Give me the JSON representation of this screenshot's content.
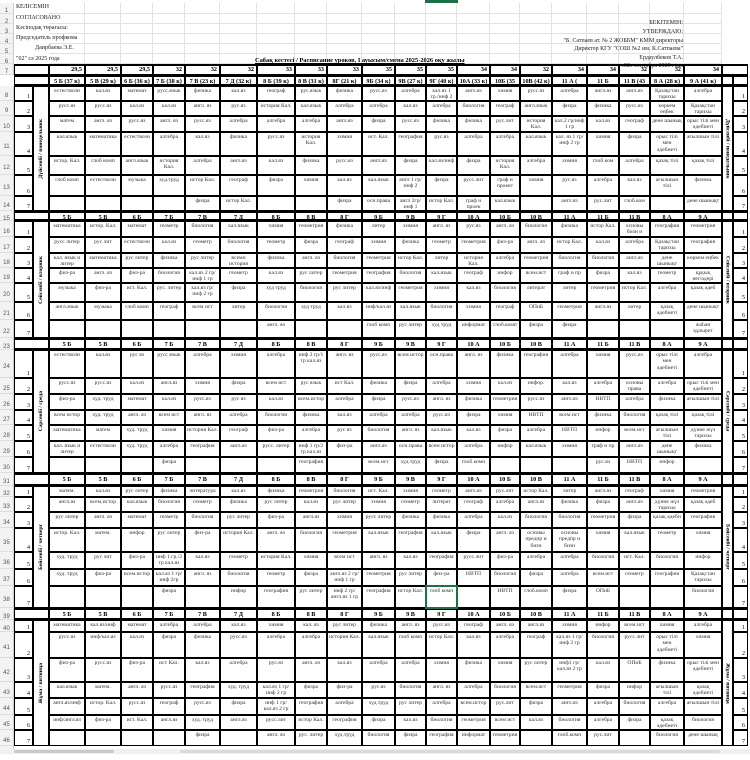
{
  "header_left": [
    "КЕЛІСЕМІН",
    "СОГЛАСОВАНО",
    "Кәсіподақ төрағасы:",
    "Председатель профкома",
    "Даирбаева Э.Е.",
    "\"02\" сә 2025 года"
  ],
  "header_right": [
    "БЕКІТЕМІН:",
    "УТВЕРЖДАЮ:",
    "\"Б. Сатпаев ат. № 2 ЖОББМ\" КММ директоры",
    "Директор КГУ \"СОШ №2 им. К.Сатпаева\"",
    "Ердаулбеков Т.А.",
    "«02» сентября 2025 года"
  ],
  "title": "Сабақ кестесі / Расписание уроков, I ауысым/смена 2025-2026 оқу жылы",
  "room_numbers": [
    "29,5",
    "29,5",
    "29,5",
    "32",
    "32",
    "32",
    "33",
    "33",
    "33",
    "35",
    "35",
    "35",
    "34",
    "34",
    "32",
    "34",
    "34",
    "32",
    "32",
    "34"
  ],
  "classes_full": [
    "5 Б (37 к)",
    "5 В (29 к)",
    "6 Б (36 к)",
    "7 Б (38 к)",
    "7 В (23 к)",
    "7 Д (32 к)",
    "8 Б (39 к)",
    "8 В (31 к)",
    "8Г (21 к)",
    "9Б (34 к)",
    "9В (27 к)",
    "9Г (40 к)",
    "10А (33 к)",
    "10Б (35 к)",
    "10В (42 к)",
    "11 А ( Сатп)",
    "11 Б (Абай)",
    "11 В (43 к)",
    "8 А (28 к)",
    "9 А (41 к)"
  ],
  "classes": [
    "5 Б",
    "5 В",
    "6 Б",
    "7 Б",
    "7 В",
    "7 Д",
    "8 Б",
    "8 В",
    "8 Г",
    "9 Б",
    "9 В",
    "9 Г",
    "10 А",
    "10 Б",
    "10 В",
    "11 А",
    "11 Б",
    "11 В",
    "8 А",
    "9 А"
  ],
  "lesson_numbers": [
    "1",
    "2",
    "3",
    "4",
    "5",
    "6",
    "7"
  ],
  "days": [
    {
      "label": "Дүйсенбі / понедельник",
      "lessons": [
        [
          "естествозн",
          "кал.яз",
          "математ",
          "русс.язык",
          "физика",
          "кал.яз",
          "географ",
          "рус.язык",
          "физика",
          "русс.яз",
          "алгебра",
          "кал.яз 1 гр./инф 2",
          "англ.яз",
          "химия",
          "русс.яз",
          "алгебра",
          "англ.яз",
          "англ.яз",
          "Қазақстан тарихы",
          "алгебра"
        ],
        [
          "русс.яз",
          "русс.яз",
          "кал.яз",
          "кал.яз",
          "англ. яз",
          "рус.яз",
          "история Кал.",
          "кал.язык",
          "алгебра",
          "алгебра",
          "кал.яз",
          "алгебра",
          "биология",
          "географ",
          "англ.язык",
          "физра",
          "физика",
          "русс.яз",
          "көркем еңбек",
          "Қазақстан тарихы"
        ],
        [
          "матем",
          "англ. яз",
          "русс.яз",
          "англ. яз",
          "русс.яз",
          "алгебра",
          "алгебра",
          "алгебра",
          "англ.яз",
          "физра",
          "русс.яз",
          "физика",
          "физика",
          "рус.лит",
          "история Кал.",
          "кал.2 гр/инф 1 гр",
          "кал.яз",
          "географ",
          "дене шынық",
          "орыс тілі мен әдебиеті"
        ],
        [
          "кал.язык",
          "математика",
          "естествозн",
          "алгебра",
          "кал.яз",
          "физика",
          "русс.яз",
          "история Кал.",
          "химия",
          "ист. Кал.",
          "география",
          "рус.яз",
          "алгебра",
          "алгебра",
          "кал.язык",
          "кал. яз 1 гр/инф 2 гр",
          "химия",
          "физра",
          "орыс тілі мен әдебиеті",
          "ағылшын тілі"
        ],
        [
          "истор. Кал.",
          "глоб комп",
          "англ.язык",
          "история Кал.",
          "алгебра",
          "англ.яз",
          "кал.яз",
          "физика",
          "русс.яз",
          "англ.яз",
          "физра",
          "кал.яз/инф",
          "физра",
          "история Кал.",
          "алгебра",
          "химия",
          "глоб.ком",
          "алгебра",
          "қазақ тілі",
          "қазақ тілі"
        ],
        [
          "глоб комп",
          "естествозн",
          "музыка",
          "худ.труд",
          "истор Кал.",
          "географ",
          "физра",
          "химия",
          "кал.яз",
          "кал.язык",
          "англ 1 гр/инф 2",
          "физра",
          "русс.лит",
          "граф и проект",
          "химия",
          "рус.яз",
          "алгебра",
          "кал.яз",
          "ағылшын тілі",
          "физика"
        ],
        [
          "",
          "",
          "",
          "",
          "физра",
          "истор Кал.",
          "",
          "",
          "физра",
          "осн.права",
          "англ 2гр/инф 1",
          "истор Кал.",
          "граф и проек",
          "кал.язык",
          "",
          "англ.яз",
          "рус.лит",
          "глоб.ком",
          "",
          "дене шынықт"
        ]
      ]
    },
    {
      "label": "Сейсенбі / вторник",
      "lessons": [
        [
          "математика",
          "истор. Кал.",
          "математ",
          "геометр",
          "биология",
          "кал.язык",
          "химия",
          "геометрия",
          "физика",
          "литер",
          "химия",
          "англ. яз",
          "рус.яз",
          "англ. яз",
          "биология",
          "физика",
          "истор Кал.",
          "основы бизн и",
          "география",
          "геометрия"
        ],
        [
          "русс литер",
          "рус лит",
          "естествозн",
          "кал.яз",
          "геометр",
          "биология",
          "геометр",
          "физра",
          "географ",
          "химия",
          "физика",
          "геометр",
          "геометрия",
          "физ-ра",
          "англ. яз",
          "истор Кал.",
          "кал.яз",
          "алгебра",
          "Қазақстан тарихы",
          "география"
        ],
        [
          "кал. язык и литер",
          "математика",
          "рус литер",
          "физика",
          "рус литер",
          "всеми история",
          "физика",
          "англ. яз",
          "биология",
          "геометрия",
          "истор Кал.",
          "литер",
          "история Кал.",
          "алгебра",
          "геометрия",
          "биология",
          "биология",
          "англ.яз",
          "дене шынықт",
          "көркем еңбек"
        ],
        [
          "физ-ра",
          "англ. яз",
          "физ-ра",
          "биология",
          "кал.яз 2 гр/инф 1 гр",
          "геометр",
          "кал.яз",
          "рус литер",
          "геометрия",
          "география",
          "биология",
          "кал.язык",
          "географ",
          "инфор",
          "всем.ист",
          "граф и пр",
          "физра",
          "кал.яз",
          "геометр",
          "құқық негіздері"
        ],
        [
          "музыка",
          "физ-ра",
          "ист. Кал.",
          "рус. литер",
          "кал.яз гр/инф 2 гр",
          "физра",
          "худ труд",
          "биология",
          "рус литер",
          "кал.яз/инф",
          "геометрия",
          "химия",
          "кал.яз",
          "биология",
          "литерат",
          "литер",
          "геометрия",
          "истор Кал.",
          "алгебра",
          "қазақ әдеб"
        ],
        [
          "англ.язык",
          "музыка",
          "глоб комп",
          "географ",
          "всем ист",
          "литер",
          "биология",
          "худ труд",
          "кал.яз",
          "инф/кал.яз",
          "кал.язык",
          "биология",
          "химия",
          "географ",
          "ОПиБ",
          "геометрия",
          "англ.яз",
          "литер",
          "қазақ әдебиеті",
          "дене шынықт"
        ],
        [
          "",
          "",
          "",
          "",
          "",
          "",
          "англ. яз",
          "",
          "",
          "глоб комп",
          "рус литер",
          "худ труд",
          "информат",
          "глоб.комп",
          "физра",
          "физра",
          "",
          "",
          "",
          "жаһан құзырет"
        ]
      ]
    },
    {
      "label": "Сәрсенбі / среда",
      "lessons": [
        [
          "естествозн",
          "кал.яз",
          "рус яз",
          "русс язык",
          "алгебра",
          "химия",
          "алгебра",
          "инф 2 гр/1 гр кал.яз",
          "англ. яз",
          "русс.яз",
          "всем.истор",
          "осн.права",
          "англ. яз",
          "физика",
          "география",
          "алгебра",
          "химия",
          "русс.яз",
          "орыс тілі мен әдебиеті",
          "алгебра"
        ],
        [
          "русс.яз",
          "русс.яз",
          "кал.яз",
          "англ.яз",
          "химия",
          "физра",
          "всем ист",
          "рус язык",
          "ист Кал.",
          "физика",
          "физра",
          "алгебра",
          "химия",
          "кал.яз",
          "инфор.",
          "кал.яз",
          "алгебра",
          "основы права",
          "алгебра",
          "орыс тілі мен әдебиеті"
        ],
        [
          "физ-ра",
          "худ. труд",
          "математ",
          "кал.яз",
          "русс.яз",
          "рус яз",
          "кал.яз",
          "всем.истор",
          "алгебра",
          "физра",
          "русс.яз",
          "англ. яз",
          "физика",
          "геометрия",
          "русс.яз",
          "англ.яз",
          "НВТП",
          "алгебра",
          "физика",
          "ағылшын тілі"
        ],
        [
          "всем истор",
          "худ. труд",
          "англ. яз",
          "всем ист",
          "англ. яз",
          "алгебра",
          "биология",
          "физика",
          "кал.яз",
          "алгебра",
          "алгебра",
          "русс.яз",
          "физра",
          "химия",
          "НВТП",
          "всем.ист",
          "физика",
          "биология",
          "қазақ тілі",
          "қазақ тілі"
        ],
        [
          "математика",
          "матем",
          "худ. труд",
          "химия",
          "история Кал.",
          "географ",
          "физ-ра",
          "алгебра",
          "рус яз",
          "биология",
          "англ. яз",
          "кал.язык",
          "кал.яз",
          "физра",
          "алгебра",
          "НВТП",
          "инфор",
          "всем.ист",
          "ағылшын тілі",
          "дүние жүз тарихы"
        ],
        [
          "кал. язык и литер",
          "естествозн",
          "худ. труд",
          "алгебра",
          "география",
          "англ.яз",
          "русс. литер",
          "инф 1 гр/2 гр кал.яз",
          "физ-ра",
          "англ.яз",
          "осн.права",
          "всем истор",
          "алгебра",
          "инфор",
          "кал.язык",
          "химия",
          "граф и пр",
          "англ.яз",
          "дене шынықт",
          "физика"
        ],
        [
          "",
          "",
          "",
          "физра",
          "",
          "",
          "",
          "география",
          "",
          "всем.ист",
          "худ.труд",
          "физра",
          "глоб.комп",
          "",
          "",
          "",
          "рус.яз",
          "НВТП",
          "инфор",
          ""
        ]
      ]
    },
    {
      "label": "Бейсенбі / четверг",
      "lessons": [
        [
          "матем.",
          "кал.яз",
          "рус литер",
          "физика",
          "литература",
          "кал.яз",
          "физика",
          "геометрия",
          "биология",
          "ист. Кал.",
          "химия",
          "геометр",
          "англ.яз",
          "рус.лит",
          "истор Кал.",
          "литер",
          "англ.яз",
          "географ",
          "химия",
          "геометрия"
        ],
        [
          "англ.яз",
          "всем.истор",
          "кал.язык",
          "биология",
          "геометр",
          "физика",
          "рус литер",
          "кал.яз",
          "рус литер",
          "химия",
          "геометр",
          "литерат",
          "географ",
          "алгебра",
          "англ.яз",
          "физика",
          "физра",
          "англ.яз",
          "дүние жүз тарихы",
          "қазақ әдеб"
        ],
        [
          "рус литер",
          "англ. яз",
          "математ",
          "геометр",
          "биология",
          "рус литер",
          "физ-ра",
          "англ.яз",
          "химия",
          "русс литер",
          "физика",
          "физика",
          "алгебра",
          "кал.яз",
          "биология",
          "биология",
          "геометрия",
          "физра",
          "қазақ әдеби",
          "география"
        ],
        [
          "истор. Кал.",
          "матем.",
          "инфор",
          "рус литер",
          "физ-ра",
          "история Кал.",
          "англ. яз",
          "биология",
          "геометрия",
          "кал.язык",
          "география",
          "кал.язык",
          "физра",
          "англ. яз",
          "основы предпр и бизн",
          "основы предпр и бизн",
          "химия",
          "кал.язык",
          "геометр",
          "химия"
        ],
        [
          "худ. труд",
          "рус лит",
          "физ-ра",
          "инф 1 гр./2 гр кал.яз",
          "кал.яз",
          "геометр",
          "история Кал.",
          "химия",
          "всем ист",
          "англ. яз",
          "кал.яз",
          "география",
          "русс.лит",
          "физ-ра",
          "алгебра",
          "алгебра",
          "биология",
          "ист. Кал.",
          "биология",
          "инфор"
        ],
        [
          "худ. труд",
          "физ-ра",
          "всем.истор",
          "кал.яз 1 гр/инф 2гр",
          "англ. яз",
          "биология",
          "геометр",
          "физра",
          "англ.яз 2 гр/инф 1 гр",
          "геометрия",
          "рус литер",
          "физ-ра",
          "НВТП",
          "биология",
          "физра",
          "алгебра",
          "всем.ист",
          "геометр",
          "география",
          "Қазақстан тарихы"
        ],
        [
          "",
          "",
          "",
          "физра",
          "",
          "инфор",
          "география",
          "рус литер",
          "инф 2 гр/англ.яз 1 гр",
          "география",
          "истор Кал.",
          "глоб комп",
          "",
          "НВТП",
          "глоб.комп",
          "физра",
          "ОПиБ",
          "",
          "",
          "биология"
        ]
      ]
    },
    {
      "label": "Жұма / пятница",
      "lessons": [
        [
          "математика",
          "кал.яз/инф",
          "математ",
          "алгебра",
          "алгебра",
          "кал.яз",
          "химия",
          "кал. яз",
          "рус литер",
          "физика",
          "англ. яз",
          "русс.яз",
          "географ",
          "англ. яз",
          "англ.яз",
          "химия",
          "инфор",
          "всем.ист",
          "химия",
          "алгебра"
        ],
        [
          "русс.яз",
          "инф/кал.яз",
          "кал.яз",
          "физра",
          "физика",
          "русс.яз",
          "алгебра",
          "алгебра",
          "история Кал.",
          "кал.язык",
          "глоб комп",
          "истор Кал.",
          "кал.яз",
          "алгебра",
          "географ",
          "кал.яз 1 гр/инф 2 гр",
          "биология",
          "русс.лит",
          "орыс тілі мен әдебиеті",
          "химия"
        ],
        [
          "физ-ра",
          "русс.яз",
          "физ-ра",
          "ист Кал.",
          "кал.яз",
          "алгебра",
          "рус.яз",
          "англ. яз",
          "кал.яз",
          "алгебра",
          "алгебра",
          "химия",
          "физика",
          "химия",
          "рус литер",
          "инф1 гр/кал.яз 2 гр",
          "кал.яз",
          "ОПиБ",
          "физика",
          "орыс тілі мен әдебиеті"
        ],
        [
          "кал.язык",
          "матем.",
          "англ. яз",
          "русс.яз",
          "география",
          "худ. труд",
          "кал.яз 1 гр/инф 2 гр",
          "физра",
          "физ-ра",
          "рус.яз",
          "биология",
          "англ. яз",
          "алгебра",
          "биология",
          "всем.ист",
          "геометрия",
          "физра",
          "инфор",
          "ағылшын тілі",
          "қазақ әдебиеті"
        ],
        [
          "англ.яз/инф",
          "истор. Кал.",
          "русс.яз",
          "географ",
          "русс.яз",
          "физра",
          "инф 1 гр/кал.яз 2 гр",
          "география",
          "алгебра",
          "худ.труд",
          "рус литер",
          "алгебра",
          "всем.истор",
          "рус.лит",
          "физра",
          "англ.яз",
          "алгебра",
          "биология",
          "алгебра",
          "ағылшын тілі"
        ],
        [
          "инф/англ.яз",
          "физ-ра",
          "ист. Кал.",
          "англ.яз",
          "худ. труд",
          "англ.яз",
          "русс.лит",
          "истор Кал.",
          "география",
          "физра",
          "кал.яз",
          "биология",
          "геометрия",
          "всем ист",
          "кал.яз",
          "биология",
          "алгебра",
          "физра",
          "қазақ әдебиеті",
          "биология"
        ],
        [
          "",
          "",
          "",
          "",
          "физра",
          "",
          "англ. яз",
          "рус. литер",
          "худ.труд",
          "биология",
          "физра",
          "география",
          "информат",
          "геометрия",
          "",
          "глоб.комп",
          "рус.лит",
          "",
          "биология",
          "дене шынық"
        ]
      ]
    }
  ],
  "colors": {
    "selection": "#1e7145",
    "grid": "#000000",
    "text": "#333333"
  }
}
